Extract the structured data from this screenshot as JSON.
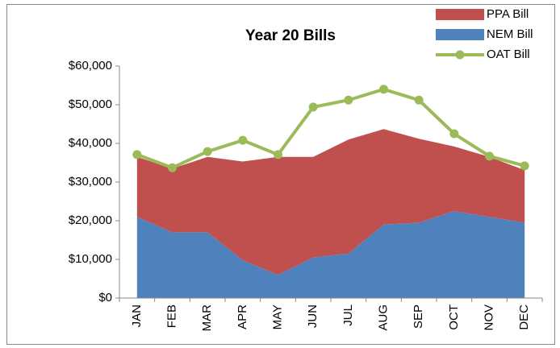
{
  "chart_data": {
    "type": "area",
    "title": "Year 20 Bills",
    "categories": [
      "JAN",
      "FEB",
      "MAR",
      "APR",
      "MAY",
      "JUN",
      "JUL",
      "AUG",
      "SEP",
      "OCT",
      "NOV",
      "DEC"
    ],
    "series": [
      {
        "name": "PPA Bill",
        "type": "area",
        "color": "#c0504d",
        "values": [
          15500,
          16500,
          19500,
          25500,
          30500,
          26000,
          29500,
          24700,
          21700,
          16700,
          15500,
          13600
        ]
      },
      {
        "name": "NEM Bill",
        "type": "area",
        "color": "#4f81bd",
        "values": [
          21000,
          17000,
          17000,
          9800,
          6000,
          10500,
          11500,
          19000,
          19500,
          22500,
          21000,
          19500
        ]
      },
      {
        "name": "OAT Bill",
        "type": "line",
        "color": "#9bbb59",
        "values": [
          37100,
          33700,
          37900,
          40800,
          37100,
          49400,
          51200,
          54000,
          51200,
          42500,
          36700,
          34200
        ]
      }
    ],
    "ylim": [
      0,
      60000
    ],
    "yticks": [
      {
        "value": 0,
        "label": "$0"
      },
      {
        "value": 10000,
        "label": "$10,000"
      },
      {
        "value": 20000,
        "label": "$20,000"
      },
      {
        "value": 30000,
        "label": "$30,000"
      },
      {
        "value": 40000,
        "label": "$40,000"
      },
      {
        "value": 50000,
        "label": "$50,000"
      },
      {
        "value": 60000,
        "label": "$60,000"
      }
    ],
    "legend": "top-right"
  }
}
